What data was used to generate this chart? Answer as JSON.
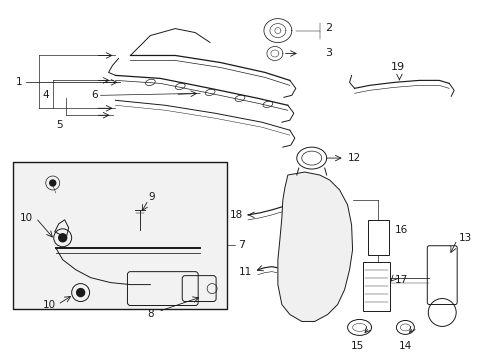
{
  "bg_color": "#ffffff",
  "line_color": "#1a1a1a",
  "label_color": "#000000",
  "font_size": 7.5,
  "lw": 0.7
}
